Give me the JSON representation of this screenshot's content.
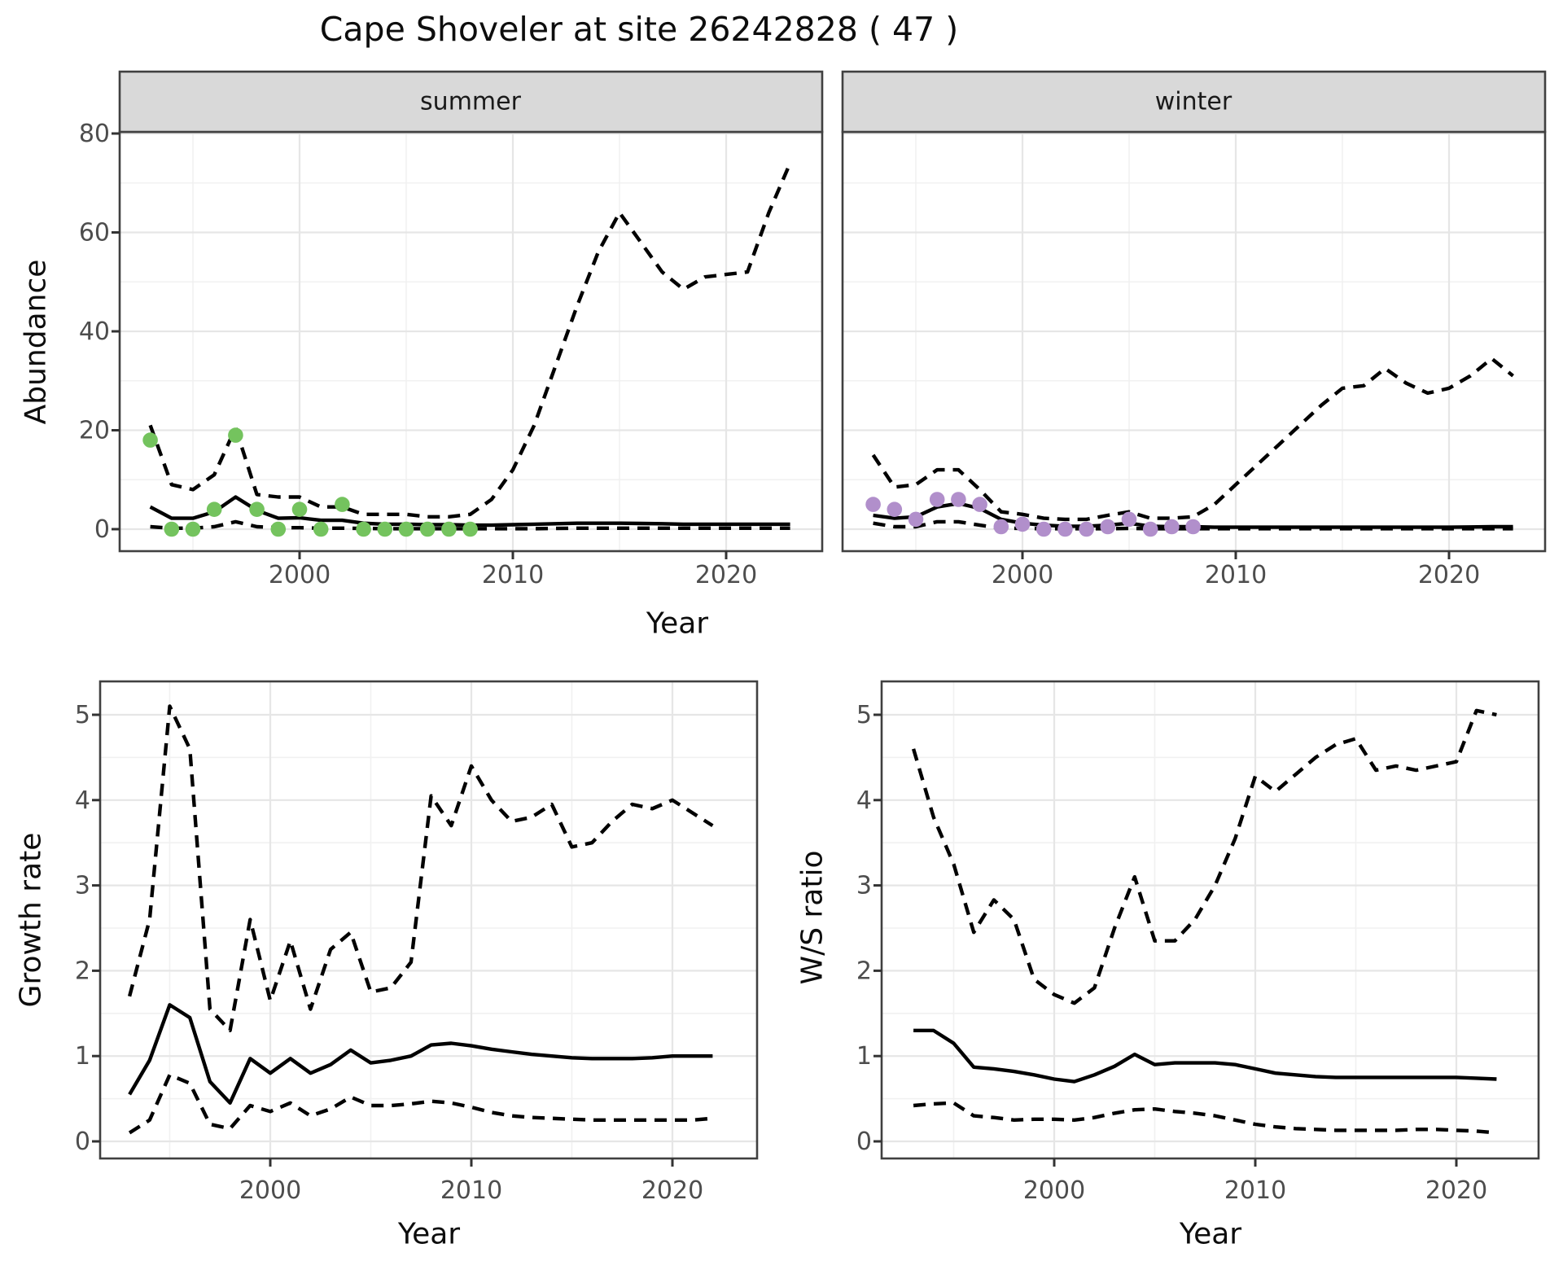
{
  "title": "Cape Shoveler at site 26242828 ( 47 )",
  "facets": {
    "summer": "summer",
    "winter": "winter"
  },
  "axes": {
    "x_label": "Year",
    "abundance_label": "Abundance",
    "growth_label": "Growth rate",
    "ws_label": "W/S ratio"
  },
  "colors": {
    "summer_points": "#74c35e",
    "winter_points": "#b18fcb",
    "line": "#000000",
    "axis_text": "#4d4d4d",
    "strip_bg": "#d9d9d9",
    "panel_border": "#404040",
    "grid_major": "#e6e6e6",
    "grid_minor": "#f1f1f1",
    "tick_mark": "#333333"
  },
  "chart_data": [
    {
      "id": "abundance_summer",
      "type": "line",
      "facet": "summer",
      "xlabel": "Year",
      "ylabel": "Abundance",
      "ylim": [
        0,
        80
      ],
      "yticks": [
        0,
        20,
        40,
        60,
        80
      ],
      "yminor": [
        10,
        30,
        50,
        70
      ],
      "xticks": [
        2000,
        2010,
        2020
      ],
      "xminor": [
        1995,
        2005,
        2015
      ],
      "grid": true,
      "x": [
        1993,
        1994,
        1995,
        1996,
        1997,
        1998,
        1999,
        2000,
        2001,
        2002,
        2003,
        2004,
        2005,
        2006,
        2007,
        2008,
        2009,
        2010,
        2011,
        2012,
        2013,
        2014,
        2015,
        2016,
        2017,
        2018,
        2019,
        2020,
        2021,
        2022,
        2023
      ],
      "series": [
        {
          "name": "upper_95ci",
          "style": "dashed",
          "values": [
            21,
            9,
            8,
            11,
            20.5,
            7,
            6.5,
            6.5,
            4.5,
            4.5,
            3,
            3,
            3,
            2.5,
            2.5,
            3,
            6,
            12,
            21,
            33,
            45,
            56,
            64,
            58,
            52,
            48.5,
            51,
            51.5,
            52,
            64,
            74
          ]
        },
        {
          "name": "median",
          "style": "solid",
          "values": [
            4.5,
            2.2,
            2.2,
            3.5,
            6.5,
            3.8,
            2.2,
            2.3,
            1.8,
            1.8,
            1.2,
            1,
            1,
            0.9,
            0.9,
            0.8,
            0.8,
            0.9,
            1,
            1.1,
            1.2,
            1.2,
            1.2,
            1.15,
            1.1,
            1,
            1,
            1,
            1,
            1,
            1
          ]
        },
        {
          "name": "lower_95ci",
          "style": "dashed",
          "values": [
            0.5,
            0.2,
            0.2,
            0.5,
            1.5,
            0.5,
            0.3,
            0.3,
            0.2,
            0.2,
            0.15,
            0.1,
            0.1,
            0.1,
            0.1,
            0.1,
            0.1,
            0.1,
            0.1,
            0.15,
            0.2,
            0.2,
            0.2,
            0.2,
            0.2,
            0.2,
            0.2,
            0.2,
            0.2,
            0.2,
            0.2
          ]
        }
      ],
      "points": {
        "name": "observed_counts",
        "color": "#74c35e",
        "x": [
          1993,
          1994,
          1995,
          1996,
          1997,
          1998,
          1999,
          2000,
          2001,
          2002,
          2003,
          2004,
          2005,
          2006,
          2007,
          2008
        ],
        "y": [
          18,
          0,
          0,
          4,
          19,
          4,
          0,
          4,
          0,
          5,
          0,
          0,
          0,
          0,
          0,
          0
        ]
      }
    },
    {
      "id": "abundance_winter",
      "type": "line",
      "facet": "winter",
      "xlabel": "Year",
      "ylabel": "Abundance",
      "ylim": [
        0,
        80
      ],
      "yticks": [
        0,
        20,
        40,
        60,
        80
      ],
      "yminor": [
        10,
        30,
        50,
        70
      ],
      "xticks": [
        2000,
        2010,
        2020
      ],
      "xminor": [
        1995,
        2005,
        2015
      ],
      "grid": true,
      "x": [
        1993,
        1994,
        1995,
        1996,
        1997,
        1998,
        1999,
        2000,
        2001,
        2002,
        2003,
        2004,
        2005,
        2006,
        2007,
        2008,
        2009,
        2010,
        2011,
        2012,
        2013,
        2014,
        2015,
        2016,
        2017,
        2018,
        2019,
        2020,
        2021,
        2022,
        2023
      ],
      "series": [
        {
          "name": "upper_95ci",
          "style": "dashed",
          "values": [
            15,
            8.5,
            9,
            12,
            12,
            8,
            3.5,
            3,
            2.2,
            2,
            2,
            2.8,
            3.5,
            2.2,
            2.2,
            2.5,
            5,
            9,
            13,
            17,
            21,
            25,
            28.5,
            29,
            32.5,
            29.5,
            27.5,
            28.5,
            31,
            34.5,
            31
          ]
        },
        {
          "name": "median",
          "style": "solid",
          "values": [
            2.8,
            2.2,
            2.5,
            4.5,
            5.2,
            4.2,
            2,
            1.2,
            0.8,
            0.6,
            0.6,
            0.8,
            1.2,
            0.6,
            0.5,
            0.5,
            0.4,
            0.4,
            0.4,
            0.4,
            0.4,
            0.4,
            0.4,
            0.4,
            0.4,
            0.4,
            0.4,
            0.4,
            0.45,
            0.5,
            0.5
          ]
        },
        {
          "name": "lower_95ci",
          "style": "dashed",
          "values": [
            1.2,
            0.5,
            0.5,
            1.5,
            1.5,
            0.8,
            0.2,
            0.15,
            0.1,
            0.1,
            0.1,
            0.1,
            0.15,
            0.1,
            0.1,
            0.1,
            0.1,
            0.1,
            0.1,
            0.1,
            0.1,
            0.1,
            0.1,
            0.1,
            0.1,
            0.1,
            0.1,
            0.1,
            0.1,
            0.1,
            0.1
          ]
        }
      ],
      "points": {
        "name": "observed_counts",
        "color": "#b18fcb",
        "x": [
          1993,
          1994,
          1995,
          1996,
          1997,
          1998,
          1999,
          2000,
          2001,
          2002,
          2003,
          2004,
          2005,
          2006,
          2007,
          2008
        ],
        "y": [
          5,
          4,
          2,
          6,
          6,
          5,
          0.5,
          1,
          0,
          0,
          0,
          0.5,
          2,
          0,
          0.5,
          0.5
        ]
      }
    },
    {
      "id": "growth_rate",
      "type": "line",
      "facet": "",
      "xlabel": "Year",
      "ylabel": "Growth rate",
      "ylim": [
        0,
        5
      ],
      "yticks": [
        0,
        1,
        2,
        3,
        4,
        5
      ],
      "yminor": [
        0.5,
        1.5,
        2.5,
        3.5,
        4.5
      ],
      "xticks": [
        2000,
        2010,
        2020
      ],
      "xminor": [
        1995,
        2005,
        2015
      ],
      "grid": true,
      "x": [
        1993,
        1994,
        1995,
        1996,
        1997,
        1998,
        1999,
        2000,
        2001,
        2002,
        2003,
        2004,
        2005,
        2006,
        2007,
        2008,
        2009,
        2010,
        2011,
        2012,
        2013,
        2014,
        2015,
        2016,
        2017,
        2018,
        2019,
        2020,
        2021,
        2022
      ],
      "series": [
        {
          "name": "upper_95ci",
          "style": "dashed",
          "values": [
            1.7,
            2.6,
            5.1,
            4.6,
            1.55,
            1.3,
            2.6,
            1.65,
            2.35,
            1.55,
            2.25,
            2.45,
            1.75,
            1.8,
            2.1,
            4.05,
            3.7,
            4.4,
            4.0,
            3.75,
            3.8,
            3.95,
            3.45,
            3.5,
            3.75,
            3.95,
            3.9,
            4.0,
            3.85,
            3.7
          ]
        },
        {
          "name": "median",
          "style": "solid",
          "values": [
            0.55,
            0.95,
            1.6,
            1.45,
            0.7,
            0.45,
            0.97,
            0.8,
            0.97,
            0.8,
            0.9,
            1.07,
            0.92,
            0.95,
            1.0,
            1.13,
            1.15,
            1.12,
            1.08,
            1.05,
            1.02,
            1.0,
            0.98,
            0.97,
            0.97,
            0.97,
            0.98,
            1.0,
            1.0,
            1.0
          ]
        },
        {
          "name": "lower_95ci",
          "style": "dashed",
          "values": [
            0.1,
            0.25,
            0.78,
            0.68,
            0.2,
            0.15,
            0.42,
            0.35,
            0.45,
            0.3,
            0.38,
            0.52,
            0.42,
            0.42,
            0.44,
            0.47,
            0.45,
            0.4,
            0.34,
            0.3,
            0.28,
            0.27,
            0.26,
            0.25,
            0.25,
            0.25,
            0.25,
            0.25,
            0.25,
            0.27
          ]
        }
      ]
    },
    {
      "id": "ws_ratio",
      "type": "line",
      "facet": "",
      "xlabel": "Year",
      "ylabel": "W/S ratio",
      "ylim": [
        0,
        5
      ],
      "yticks": [
        0,
        1,
        2,
        3,
        4,
        5
      ],
      "yminor": [
        0.5,
        1.5,
        2.5,
        3.5,
        4.5
      ],
      "xticks": [
        2000,
        2010,
        2020
      ],
      "xminor": [
        1995,
        2005,
        2015
      ],
      "grid": true,
      "x": [
        1993,
        1994,
        1995,
        1996,
        1997,
        1998,
        1999,
        2000,
        2001,
        2002,
        2003,
        2004,
        2005,
        2006,
        2007,
        2008,
        2009,
        2010,
        2011,
        2012,
        2013,
        2014,
        2015,
        2016,
        2017,
        2018,
        2019,
        2020,
        2021,
        2022
      ],
      "series": [
        {
          "name": "upper_95ci",
          "style": "dashed",
          "values": [
            4.6,
            3.8,
            3.25,
            2.45,
            2.83,
            2.6,
            1.9,
            1.72,
            1.62,
            1.8,
            2.5,
            3.1,
            2.35,
            2.35,
            2.6,
            3.0,
            3.55,
            4.28,
            4.1,
            4.3,
            4.5,
            4.65,
            4.72,
            4.35,
            4.4,
            4.35,
            4.4,
            4.45,
            5.05,
            5.0
          ]
        },
        {
          "name": "median",
          "style": "solid",
          "values": [
            1.3,
            1.3,
            1.15,
            0.87,
            0.85,
            0.82,
            0.78,
            0.73,
            0.7,
            0.78,
            0.88,
            1.02,
            0.9,
            0.92,
            0.92,
            0.92,
            0.9,
            0.85,
            0.8,
            0.78,
            0.76,
            0.75,
            0.75,
            0.75,
            0.75,
            0.75,
            0.75,
            0.75,
            0.74,
            0.73
          ]
        },
        {
          "name": "lower_95ci",
          "style": "dashed",
          "values": [
            0.42,
            0.44,
            0.45,
            0.3,
            0.28,
            0.25,
            0.26,
            0.26,
            0.25,
            0.28,
            0.33,
            0.37,
            0.38,
            0.35,
            0.33,
            0.3,
            0.25,
            0.2,
            0.17,
            0.15,
            0.14,
            0.13,
            0.13,
            0.13,
            0.13,
            0.14,
            0.14,
            0.13,
            0.12,
            0.1
          ]
        }
      ]
    }
  ]
}
